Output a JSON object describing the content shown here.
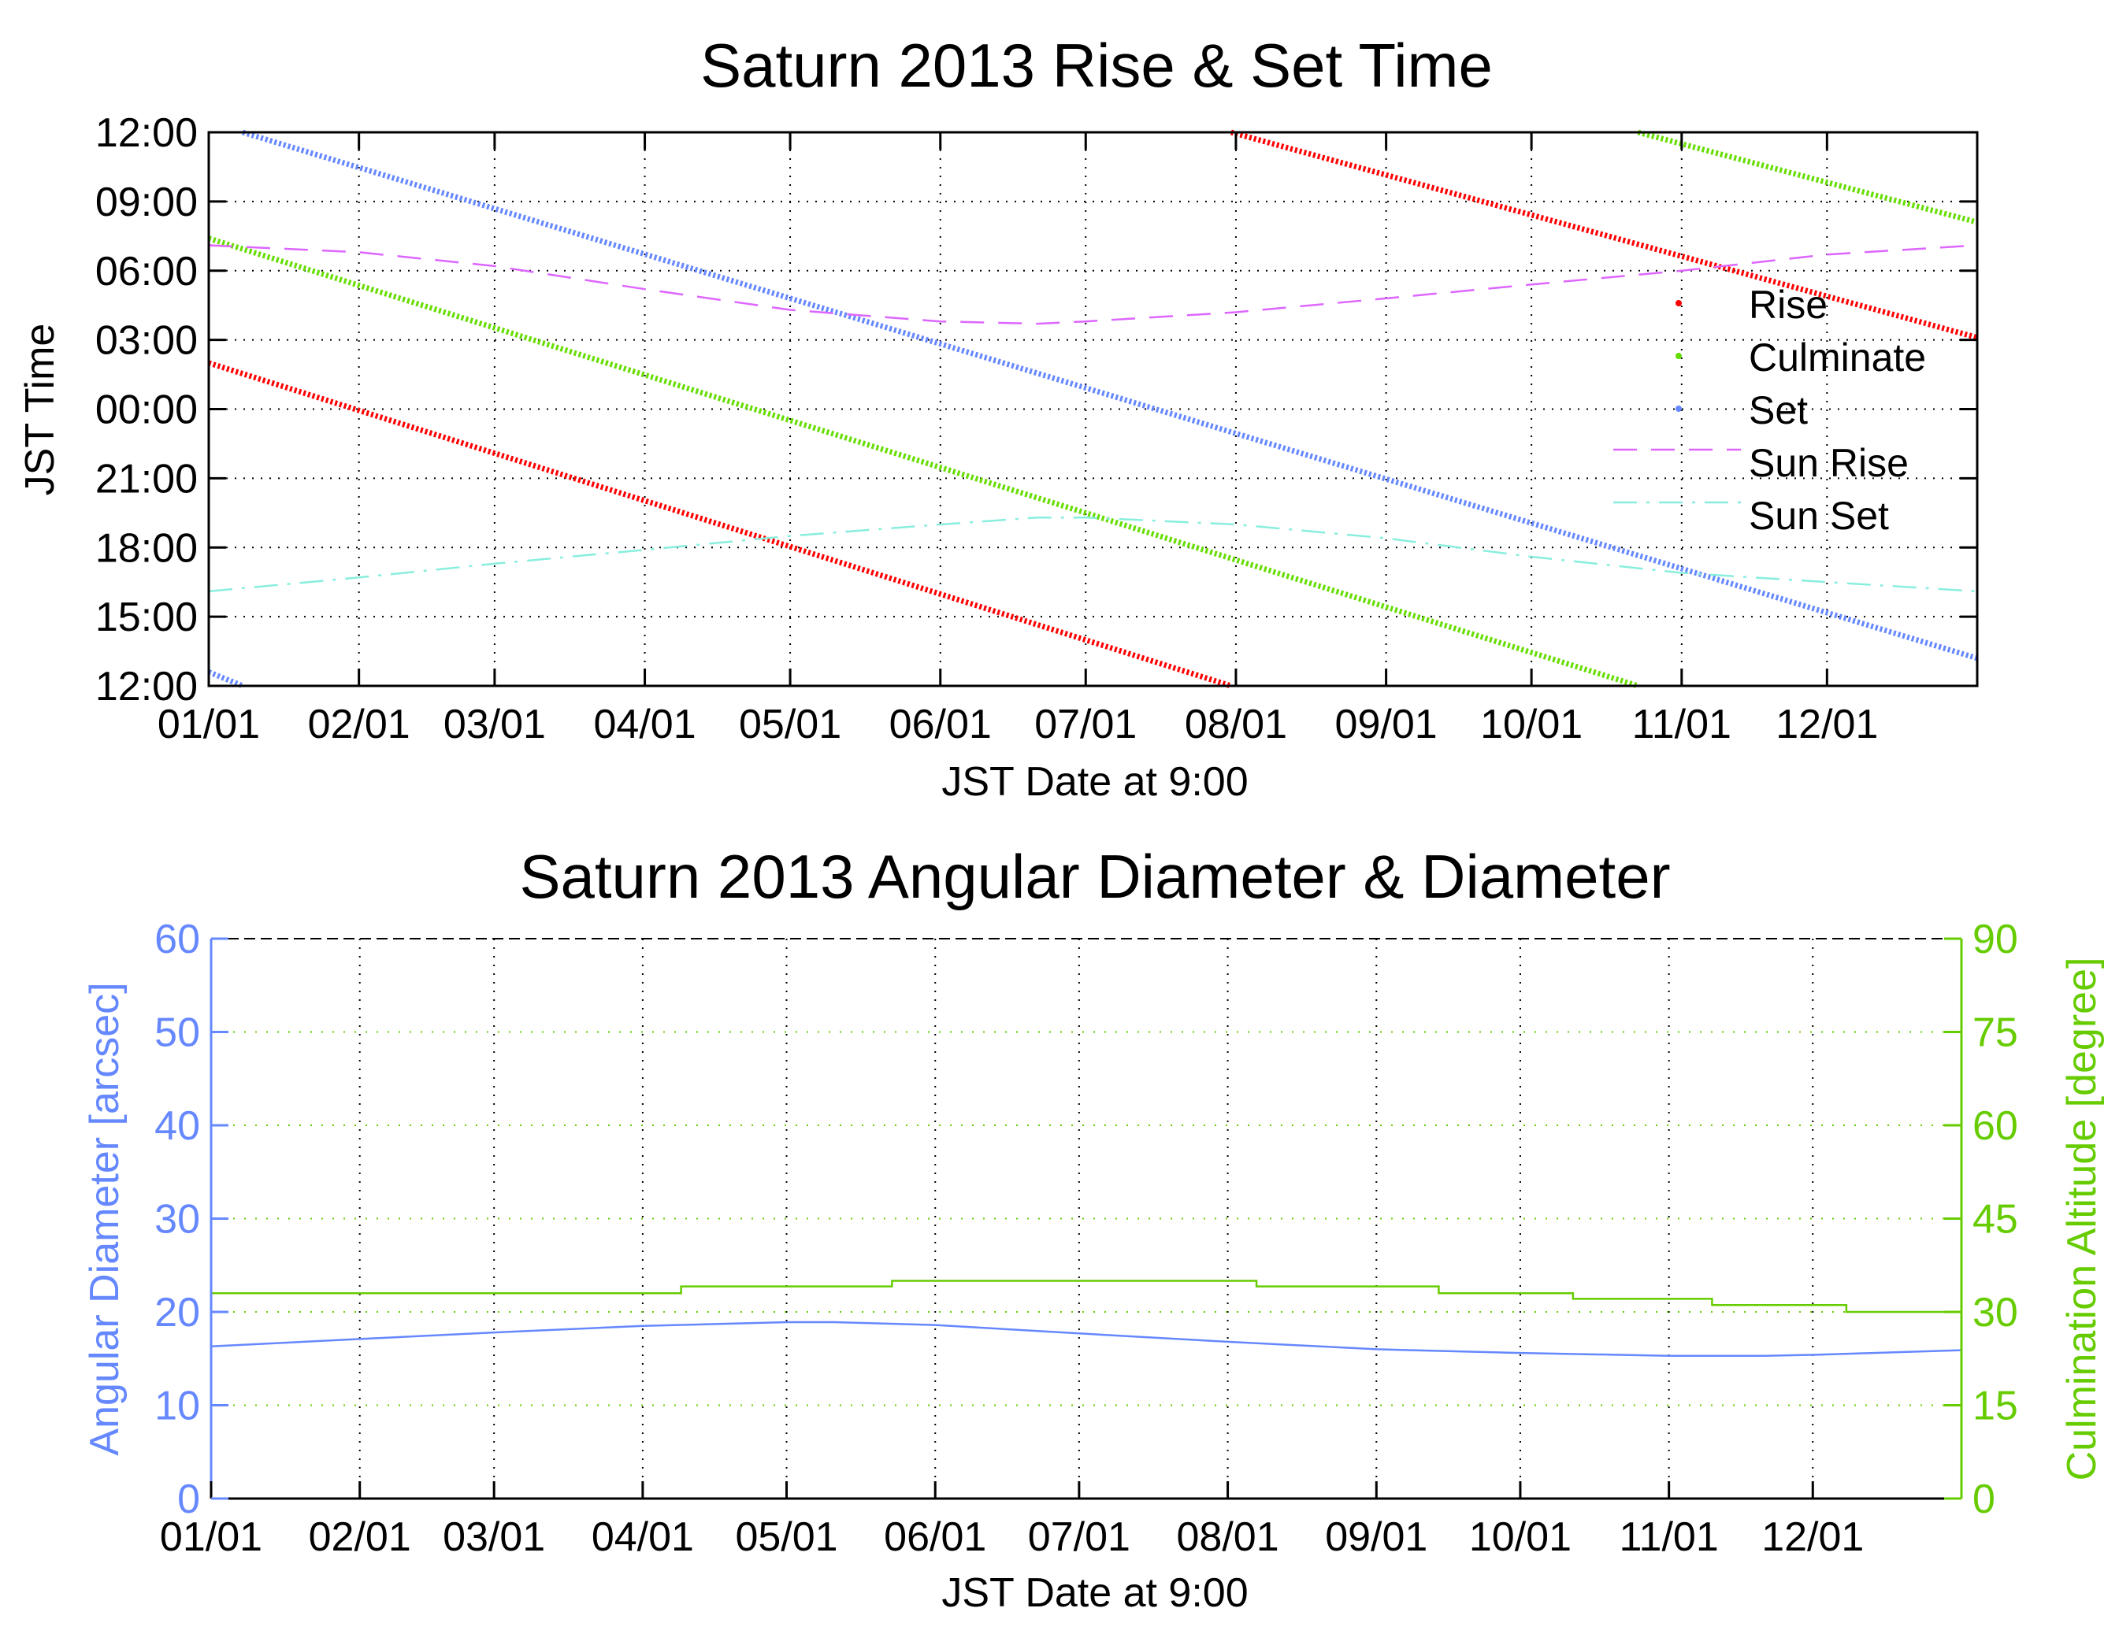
{
  "chart_data": [
    {
      "type": "scatter",
      "title": "Saturn 2013 Rise & Set Time",
      "xlabel": "JST Date at 9:00",
      "ylabel": "JST Time",
      "x_unit": "day of year 2013",
      "y_unit": "hours (12:00 at bottom, wrapping to next day's 12:00 at top)",
      "xlim": [
        1,
        366
      ],
      "ylim": [
        12,
        36
      ],
      "x_ticks": [
        "01/01",
        "02/01",
        "03/01",
        "04/01",
        "05/01",
        "06/01",
        "07/01",
        "08/01",
        "09/01",
        "10/01",
        "11/01",
        "12/01"
      ],
      "y_ticks": [
        "12:00",
        "15:00",
        "18:00",
        "21:00",
        "00:00",
        "03:00",
        "06:00",
        "09:00",
        "12:00"
      ],
      "grid": true,
      "legend_position": "right",
      "series": [
        {
          "name": "Rise",
          "style": "dots",
          "color": "#ff0000",
          "segments": [
            [
              [
                1,
                26.0
              ],
              [
                212,
                12.0
              ]
            ],
            [
              [
                212,
                36.0
              ],
              [
                366,
                27.1
              ]
            ]
          ]
        },
        {
          "name": "Culminate",
          "style": "dots",
          "color": "#66dd00",
          "segments": [
            [
              [
                1,
                31.4
              ],
              [
                296,
                12.0
              ]
            ],
            [
              [
                296,
                36.0
              ],
              [
                366,
                32.1
              ]
            ]
          ]
        },
        {
          "name": "Set",
          "style": "dots",
          "color": "#6688ff",
          "segments": [
            [
              [
                1,
                12.6
              ],
              [
                8,
                12.0
              ]
            ],
            [
              [
                8,
                36.0
              ],
              [
                366,
                13.2
              ]
            ]
          ]
        },
        {
          "name": "Sun Rise",
          "style": "dashed",
          "color": "#dd66ff",
          "points": [
            [
              1,
              31.1
            ],
            [
              32,
              30.8
            ],
            [
              60,
              30.2
            ],
            [
              91,
              29.2
            ],
            [
              121,
              28.3
            ],
            [
              152,
              27.8
            ],
            [
              172,
              27.7
            ],
            [
              182,
              27.8
            ],
            [
              213,
              28.2
            ],
            [
              244,
              28.8
            ],
            [
              274,
              29.4
            ],
            [
              305,
              30.0
            ],
            [
              335,
              30.7
            ],
            [
              366,
              31.1
            ]
          ]
        },
        {
          "name": "Sun Set",
          "style": "dash-dot",
          "color": "#88eedd",
          "points": [
            [
              1,
              16.1
            ],
            [
              32,
              16.7
            ],
            [
              60,
              17.3
            ],
            [
              91,
              17.9
            ],
            [
              121,
              18.5
            ],
            [
              152,
              19.0
            ],
            [
              172,
              19.3
            ],
            [
              182,
              19.3
            ],
            [
              213,
              19.0
            ],
            [
              244,
              18.4
            ],
            [
              274,
              17.6
            ],
            [
              305,
              16.9
            ],
            [
              335,
              16.5
            ],
            [
              366,
              16.1
            ]
          ]
        }
      ]
    },
    {
      "type": "line",
      "title": "Saturn 2013 Angular Diameter & Diameter",
      "xlabel": "JST Date at 9:00",
      "x_unit": "day of year 2013",
      "xlim": [
        1,
        366
      ],
      "x_ticks": [
        "01/01",
        "02/01",
        "03/01",
        "04/01",
        "05/01",
        "06/01",
        "07/01",
        "08/01",
        "09/01",
        "10/01",
        "11/01",
        "12/01"
      ],
      "ylabel_left": "Angular Diameter [arcsec]",
      "ylabel_right": "Culmination Altitude [degree]",
      "ylim_left": [
        0,
        60
      ],
      "ylim_right": [
        0,
        90
      ],
      "y_ticks_left": [
        "0",
        "10",
        "20",
        "30",
        "40",
        "50",
        "60"
      ],
      "y_ticks_right": [
        "0",
        "15",
        "30",
        "45",
        "60",
        "75",
        "90"
      ],
      "left_color": "#6688ff",
      "right_color": "#66cc00",
      "grid": true,
      "series": [
        {
          "axis": "left",
          "color": "#6688ff",
          "points": [
            [
              1,
              16.3
            ],
            [
              32,
              17.1
            ],
            [
              60,
              17.8
            ],
            [
              91,
              18.5
            ],
            [
              121,
              18.9
            ],
            [
              131,
              18.9
            ],
            [
              152,
              18.6
            ],
            [
              182,
              17.7
            ],
            [
              213,
              16.8
            ],
            [
              244,
              16.0
            ],
            [
              274,
              15.6
            ],
            [
              305,
              15.3
            ],
            [
              325,
              15.3
            ],
            [
              335,
              15.4
            ],
            [
              366,
              15.9
            ]
          ]
        },
        {
          "axis": "right",
          "color": "#66cc00",
          "style": "step",
          "points": [
            [
              1,
              33.0
            ],
            [
              99,
              33.0
            ],
            [
              99,
              34.1
            ],
            [
              143,
              34.1
            ],
            [
              143,
              35.0
            ],
            [
              219,
              35.0
            ],
            [
              219,
              34.1
            ],
            [
              257,
              34.1
            ],
            [
              257,
              33.0
            ],
            [
              285,
              33.0
            ],
            [
              285,
              32.1
            ],
            [
              314,
              32.1
            ],
            [
              314,
              31.1
            ],
            [
              342,
              31.1
            ],
            [
              342,
              30.0
            ],
            [
              366,
              30.0
            ]
          ]
        }
      ]
    }
  ]
}
